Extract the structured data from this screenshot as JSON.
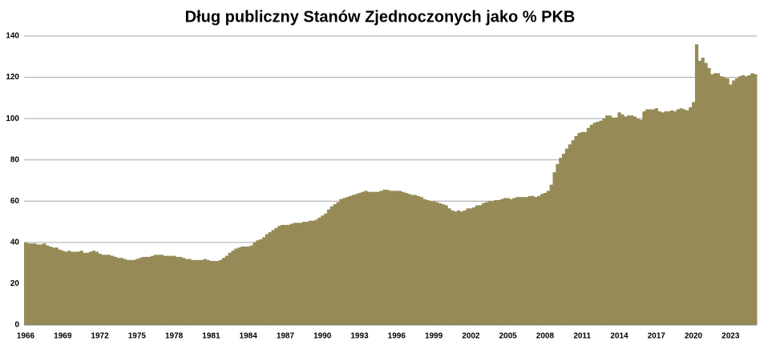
{
  "chart_data": {
    "type": "bar",
    "title": "Dług publiczny Stanów Zjednoczonych jako % PKB",
    "categories": [
      "1966",
      null,
      null,
      null,
      null,
      null,
      null,
      null,
      null,
      null,
      null,
      null,
      "1969",
      null,
      null,
      null,
      null,
      null,
      null,
      null,
      null,
      null,
      null,
      null,
      "1972",
      null,
      null,
      null,
      null,
      null,
      null,
      null,
      null,
      null,
      null,
      null,
      "1975",
      null,
      null,
      null,
      null,
      null,
      null,
      null,
      null,
      null,
      null,
      null,
      "1978",
      null,
      null,
      null,
      null,
      null,
      null,
      null,
      null,
      null,
      null,
      null,
      "1981",
      null,
      null,
      null,
      null,
      null,
      null,
      null,
      null,
      null,
      null,
      null,
      "1984",
      null,
      null,
      null,
      null,
      null,
      null,
      null,
      null,
      null,
      null,
      null,
      "1987",
      null,
      null,
      null,
      null,
      null,
      null,
      null,
      null,
      null,
      null,
      null,
      "1990",
      null,
      null,
      null,
      null,
      null,
      null,
      null,
      null,
      null,
      null,
      null,
      "1993",
      null,
      null,
      null,
      null,
      null,
      null,
      null,
      null,
      null,
      null,
      null,
      "1996",
      null,
      null,
      null,
      null,
      null,
      null,
      null,
      null,
      null,
      null,
      null,
      "1999",
      null,
      null,
      null,
      null,
      null,
      null,
      null,
      null,
      null,
      null,
      null,
      "2002",
      null,
      null,
      null,
      null,
      null,
      null,
      null,
      null,
      null,
      null,
      null,
      "2005",
      null,
      null,
      null,
      null,
      null,
      null,
      null,
      null,
      null,
      null,
      null,
      "2008",
      null,
      null,
      null,
      null,
      null,
      null,
      null,
      null,
      null,
      null,
      null,
      "2011",
      null,
      null,
      null,
      null,
      null,
      null,
      null,
      null,
      null,
      null,
      null,
      "2014",
      null,
      null,
      null,
      null,
      null,
      null,
      null,
      null,
      null,
      null,
      null,
      "2017",
      null,
      null,
      null,
      null,
      null,
      null,
      null,
      null,
      null,
      null,
      null,
      "2020",
      null,
      null,
      null,
      null,
      null,
      null,
      null,
      null,
      null,
      null,
      null,
      "2023",
      null,
      null,
      null,
      null,
      null,
      null,
      null,
      null
    ],
    "values": [
      40,
      39.5,
      39.5,
      39.5,
      39,
      39,
      39.5,
      38.5,
      38,
      37.5,
      37.5,
      36.5,
      36,
      35.5,
      36,
      35.5,
      35.5,
      35.5,
      36,
      35,
      35,
      35.5,
      36,
      35.5,
      34.5,
      34,
      34,
      34,
      33.5,
      33,
      32.5,
      32.5,
      32,
      31.5,
      31.5,
      31.5,
      32,
      32.5,
      33,
      33,
      33,
      33.5,
      34,
      34,
      34,
      33.5,
      33.5,
      33.5,
      33.5,
      33,
      33,
      32.5,
      32,
      32,
      31.5,
      31.5,
      31.5,
      31.5,
      32,
      31.5,
      31,
      31,
      31,
      31.5,
      32.5,
      33.5,
      35,
      36,
      37,
      37.5,
      38,
      38,
      38,
      38.5,
      40,
      41,
      41.5,
      42.5,
      44,
      45,
      46,
      47,
      48,
      48.5,
      48.5,
      48.5,
      49,
      49.5,
      49.5,
      49.5,
      50,
      50,
      50.5,
      50.5,
      51,
      52,
      53,
      54,
      56,
      57.5,
      58.5,
      59.5,
      61,
      61.5,
      62,
      62.5,
      63,
      63.5,
      64,
      64.5,
      65,
      64.5,
      64.5,
      64.5,
      64.5,
      65,
      65.5,
      65.5,
      65,
      65,
      65,
      65,
      64.5,
      64,
      63.5,
      63,
      63,
      62.5,
      62,
      61,
      60.5,
      60,
      60,
      59.5,
      59,
      58.5,
      58,
      56.5,
      55.5,
      55,
      55.5,
      55,
      55.5,
      56.5,
      56.5,
      57,
      58,
      58,
      59,
      59.5,
      60,
      60,
      60.5,
      60.5,
      61,
      61.5,
      61.5,
      61,
      61.5,
      62,
      62,
      62,
      62,
      62.5,
      62.5,
      62,
      62.5,
      63.5,
      64,
      65,
      68,
      74,
      78,
      81,
      83,
      85.5,
      87.5,
      89.5,
      91.5,
      93,
      93.5,
      93.5,
      95.5,
      97,
      98,
      98.5,
      99,
      100,
      101.5,
      101.5,
      100.5,
      100.5,
      103,
      102,
      101,
      101.5,
      101.5,
      101,
      100,
      99.5,
      103.5,
      104.5,
      104.5,
      104.5,
      105,
      103.5,
      103,
      103.5,
      103.5,
      104,
      103.5,
      104.5,
      105,
      104.5,
      104,
      105.5,
      108,
      136,
      128,
      129.5,
      127,
      124.5,
      121.5,
      122,
      122,
      120.5,
      120,
      119.5,
      116.5,
      118.5,
      119.5,
      120.5,
      121,
      120.5,
      121,
      122,
      121.5
    ],
    "color": "#968b57",
    "ylim": [
      0,
      140
    ],
    "yticks": [
      0,
      20,
      40,
      60,
      80,
      100,
      120,
      140
    ],
    "grid": true
  }
}
